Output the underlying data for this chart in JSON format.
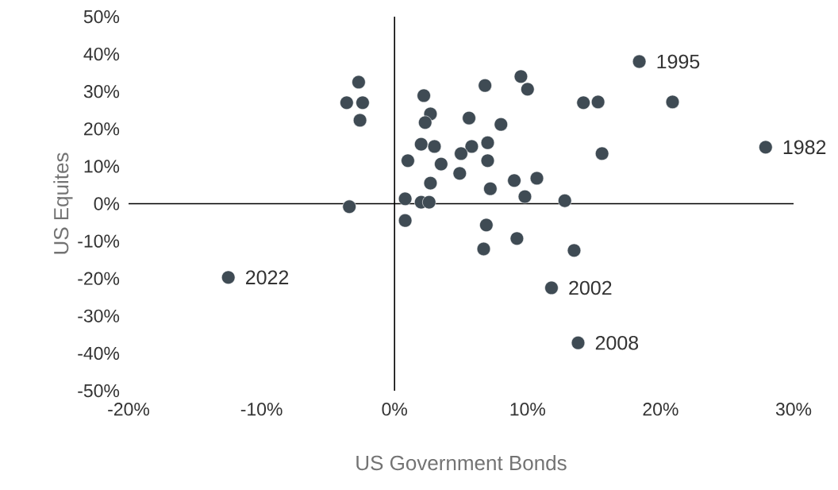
{
  "chart_data": {
    "type": "scatter",
    "xlabel": "US Government Bonds",
    "ylabel": "US Equites",
    "xlim": [
      -20,
      30
    ],
    "ylim": [
      -50,
      50
    ],
    "xticks": [
      {
        "value": -20,
        "label": "-20%"
      },
      {
        "value": -10,
        "label": "-10%"
      },
      {
        "value": 0,
        "label": "0%"
      },
      {
        "value": 10,
        "label": "10%"
      },
      {
        "value": 20,
        "label": "20%"
      },
      {
        "value": 30,
        "label": "30%"
      }
    ],
    "yticks": [
      {
        "value": -50,
        "label": "-50%"
      },
      {
        "value": -40,
        "label": "-40%"
      },
      {
        "value": -30,
        "label": "-30%"
      },
      {
        "value": -20,
        "label": "-20%"
      },
      {
        "value": -10,
        "label": "-10%"
      },
      {
        "value": 0,
        "label": "0%"
      },
      {
        "value": 10,
        "label": "10%"
      },
      {
        "value": 20,
        "label": "20%"
      },
      {
        "value": 30,
        "label": "30%"
      },
      {
        "value": 40,
        "label": "40%"
      },
      {
        "value": 50,
        "label": "50%"
      }
    ],
    "series": [
      {
        "color": "#3f4b54",
        "x": [
          18.4,
          27.9,
          -12.5,
          11.8,
          13.8,
          -2.7,
          -3.6,
          -2.4,
          -2.6,
          -3.4,
          2.2,
          2.7,
          2.3,
          6.8,
          9.5,
          10.0,
          14.2,
          15.3,
          20.9,
          5.6,
          8.0,
          2.0,
          3.0,
          5.8,
          7.0,
          5.0,
          15.6,
          1.0,
          3.5,
          7.0,
          4.9,
          2.7,
          7.2,
          9.0,
          10.7,
          9.8,
          12.8,
          0.8,
          2.0,
          2.6,
          0.8,
          6.9,
          9.2,
          6.7,
          13.5
        ],
        "values": [
          38.0,
          15.1,
          -19.7,
          -22.5,
          -37.2,
          32.5,
          27.0,
          27.0,
          22.3,
          -0.8,
          28.9,
          24.0,
          21.7,
          31.6,
          34.0,
          30.6,
          27.0,
          27.2,
          27.2,
          22.9,
          21.2,
          15.9,
          15.3,
          15.3,
          16.3,
          13.4,
          13.4,
          11.5,
          10.6,
          11.5,
          8.1,
          5.5,
          4.0,
          6.2,
          6.8,
          1.9,
          0.8,
          1.3,
          0.4,
          0.4,
          -4.5,
          -5.7,
          -9.3,
          -12.1,
          -12.5
        ]
      }
    ],
    "annotations": [
      {
        "text": "1995",
        "x": 18.4,
        "y": 38.0
      },
      {
        "text": "1982",
        "x": 27.9,
        "y": 15.1
      },
      {
        "text": "2022",
        "x": -12.5,
        "y": -19.7
      },
      {
        "text": "2002",
        "x": 11.8,
        "y": -22.5
      },
      {
        "text": "2008",
        "x": 13.8,
        "y": -37.2
      }
    ]
  }
}
